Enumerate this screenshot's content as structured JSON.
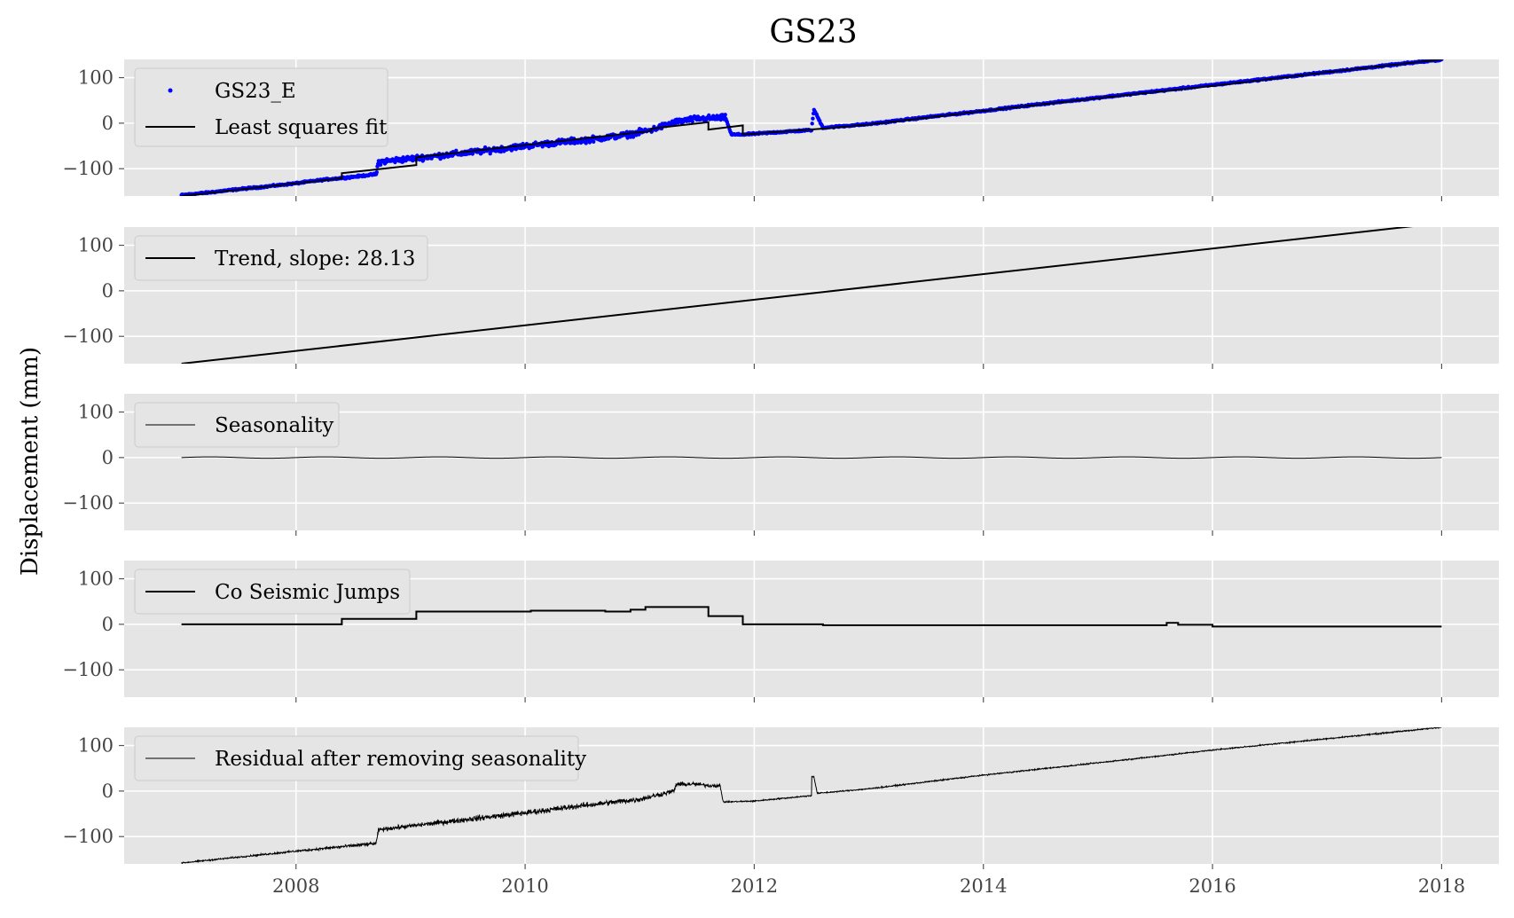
{
  "chart_data": {
    "type": "line",
    "title": "GS23",
    "ylabel": "Displacement (mm)",
    "x_ticks": [
      "2008",
      "2010",
      "2012",
      "2014",
      "2016",
      "2018"
    ],
    "x_tick_values": [
      2008,
      2010,
      2012,
      2014,
      2016,
      2018
    ],
    "xlim": [
      2006.5,
      2018.5
    ],
    "y_ticks": [
      "100",
      "0",
      "−100"
    ],
    "y_tick_values": [
      100,
      0,
      -100
    ],
    "ylim": [
      -160,
      140
    ],
    "grid": true,
    "legend_placement": "upper-left",
    "colors": {
      "background": "#e5e5e5",
      "grid": "#ffffff",
      "data_points": "#0000ff",
      "line": "#000000"
    },
    "panels": [
      {
        "legend": [
          "GS23_E",
          "Least squares fit"
        ],
        "series": [
          {
            "name": "GS23_E",
            "style": "points",
            "x": [
              2007.0,
              2007.25,
              2007.5,
              2007.75,
              2008.0,
              2008.25,
              2008.5,
              2008.7,
              2008.72,
              2009.0,
              2009.3,
              2009.6,
              2010.0,
              2010.3,
              2010.6,
              2010.9,
              2011.1,
              2011.3,
              2011.5,
              2011.75,
              2011.8,
              2011.9,
              2012.2,
              2012.5,
              2012.52,
              2012.6,
              2013.0,
              2013.5,
              2014.0,
              2014.5,
              2015.0,
              2015.5,
              2016.0,
              2016.5,
              2017.0,
              2017.5,
              2018.0
            ],
            "y": [
              -158,
              -152,
              -145,
              -139,
              -132,
              -124,
              -118,
              -112,
              -85,
              -78,
              -70,
              -62,
              -50,
              -42,
              -35,
              -25,
              -15,
              2,
              10,
              12,
              -25,
              -25,
              -20,
              -15,
              30,
              -10,
              -2,
              13,
              27,
              42,
              56,
              70,
              84,
              98,
              112,
              126,
              140
            ]
          },
          {
            "name": "Least squares fit",
            "style": "line",
            "x": [
              2007.0,
              2008.4,
              2008.4,
              2009.05,
              2009.05,
              2011.1,
              2011.1,
              2011.6,
              2011.6,
              2011.9,
              2011.9,
              2012.6,
              2013.0,
              2014.0,
              2015.0,
              2016.0,
              2017.0,
              2018.0
            ],
            "y": [
              -160,
              -121,
              -110,
              -92,
              -75,
              -17,
              -12,
              2,
              -14,
              -5,
              -25,
              -12,
              -3,
              27,
              55,
              82,
              112,
              140
            ]
          }
        ]
      },
      {
        "legend": [
          "Trend, slope: 28.13"
        ],
        "series": [
          {
            "name": "Trend, slope: 28.13",
            "style": "line",
            "x": [
              2007.0,
              2018.0
            ],
            "y": [
              -160,
              149
            ]
          }
        ]
      },
      {
        "legend": [
          "Seasonality"
        ],
        "series": [
          {
            "name": "Seasonality",
            "style": "sine",
            "x": [
              2007.0,
              2018.0
            ],
            "y": [
              0,
              0
            ],
            "amplitude": 1.5
          }
        ]
      },
      {
        "legend": [
          "Co Seismic Jumps"
        ],
        "series": [
          {
            "name": "Co Seismic Jumps",
            "style": "step",
            "x": [
              2007.0,
              2008.4,
              2008.4,
              2009.05,
              2009.05,
              2010.05,
              2010.05,
              2010.7,
              2010.7,
              2010.92,
              2010.92,
              2011.05,
              2011.05,
              2011.6,
              2011.6,
              2011.9,
              2011.9,
              2012.6,
              2012.6,
              2015.6,
              2015.6,
              2015.7,
              2015.7,
              2016.0,
              2016.0,
              2018.0
            ],
            "y": [
              0,
              0,
              12,
              12,
              28,
              28,
              30,
              30,
              28,
              28,
              32,
              32,
              38,
              38,
              18,
              18,
              0,
              0,
              -2,
              -2,
              3,
              3,
              -1,
              -1,
              -5,
              -5
            ]
          }
        ]
      },
      {
        "legend": [
          "Residual after removing seasonality"
        ],
        "series": [
          {
            "name": "Residual after removing seasonality",
            "style": "noisy-line",
            "x": [
              2007.0,
              2008.0,
              2008.7,
              2008.72,
              2009.5,
              2010.0,
              2010.5,
              2011.0,
              2011.3,
              2011.32,
              2011.5,
              2011.6,
              2011.7,
              2011.73,
              2012.0,
              2012.5,
              2012.5,
              2012.52,
              2012.55,
              2013.0,
              2014.0,
              2015.0,
              2016.0,
              2017.0,
              2018.0
            ],
            "y": [
              -158,
              -132,
              -115,
              -85,
              -62,
              -48,
              -32,
              -18,
              0,
              15,
              15,
              12,
              12,
              -24,
              -22,
              -10,
              32,
              32,
              -5,
              5,
              35,
              62,
              90,
              115,
              140
            ],
            "noise": [
              2,
              3,
              6,
              6,
              9,
              9,
              9,
              9,
              7,
              7,
              6,
              6,
              6,
              2,
              2,
              2,
              2,
              2,
              2,
              2,
              2,
              2,
              2,
              2,
              2
            ]
          }
        ]
      }
    ]
  }
}
